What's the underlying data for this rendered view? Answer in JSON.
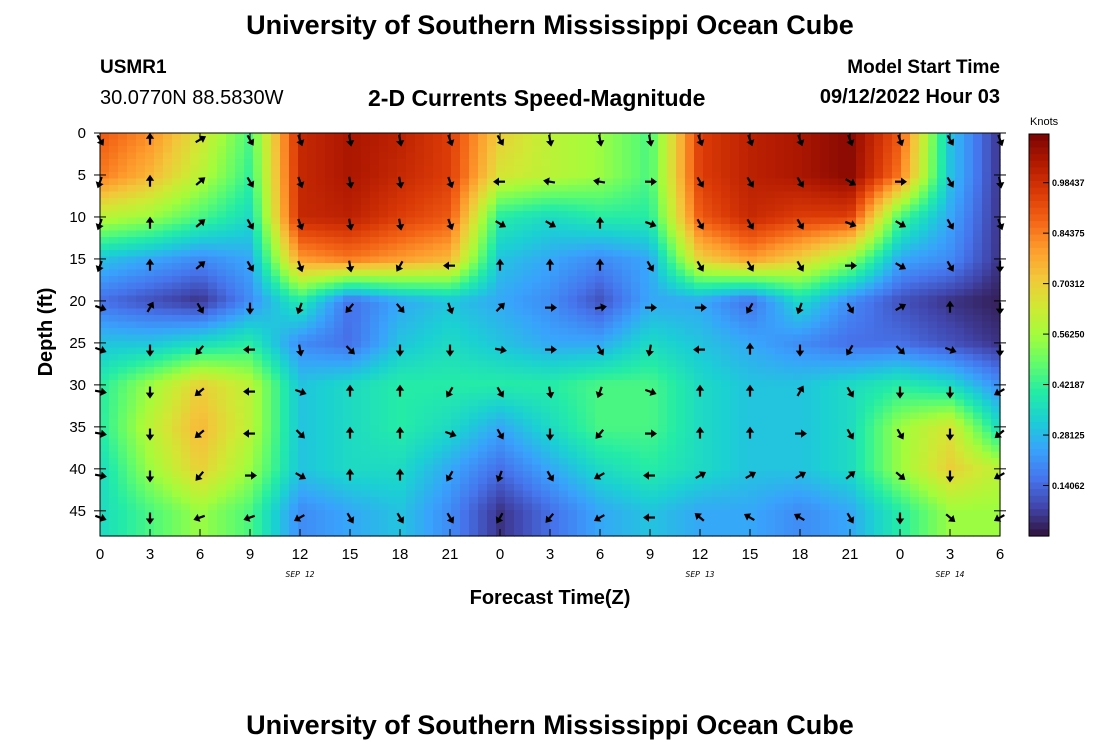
{
  "header": {
    "title": "University of Southern Mississippi Ocean Cube",
    "station": "USMR1",
    "coords": "30.0770N  88.5830W",
    "subtitle": "2-D Currents Speed-Magnitude",
    "model_start_label": "Model Start Time",
    "model_start_value": "09/12/2022 Hour 03"
  },
  "footer_title": "University of Southern Mississippi Ocean Cube",
  "chart_data": {
    "type": "heatmap",
    "xlabel": "Forecast Time(Z)",
    "ylabel": "Depth (ft)",
    "x_ticks": [
      "0",
      "3",
      "6",
      "9",
      "12",
      "15",
      "18",
      "21",
      "0",
      "3",
      "6",
      "9",
      "12",
      "15",
      "18",
      "21",
      "0",
      "3",
      "6"
    ],
    "x_range": [
      0,
      54
    ],
    "x_unit": "hours from 09/12 00Z",
    "date_labels": [
      {
        "label": "SEP 12",
        "hour": 12
      },
      {
        "label": "SEP 13",
        "hour": 36
      },
      {
        "label": "SEP 14",
        "hour": 51
      }
    ],
    "y_ticks": [
      0,
      5,
      10,
      15,
      20,
      25,
      30,
      35,
      40,
      45
    ],
    "y_range": [
      0,
      48
    ],
    "y_inverted": true,
    "colorbar": {
      "title": "Knots",
      "ticks": [
        "0.98437",
        "0.84375",
        "0.70312",
        "0.56250",
        "0.42187",
        "0.28125",
        "0.14062"
      ],
      "range": [
        0.0,
        1.12
      ],
      "colormap": [
        "#30123b",
        "#4145ab",
        "#4675ed",
        "#39a2fc",
        "#1bcfd4",
        "#24eca6",
        "#61fc6c",
        "#a4fc3b",
        "#d1e834",
        "#f3c63a",
        "#fe9b2d",
        "#f36315",
        "#d93806",
        "#b11901",
        "#7a0403"
      ]
    },
    "speed_grid": {
      "x": [
        0,
        3,
        6,
        9,
        12,
        15,
        18,
        21,
        24,
        27,
        30,
        33,
        36,
        39,
        42,
        45,
        48,
        51,
        54
      ],
      "depths": [
        0,
        5,
        10,
        15,
        20,
        25,
        30,
        35,
        40,
        45
      ],
      "values": [
        [
          0.9,
          0.82,
          0.65,
          0.45,
          1.0,
          1.05,
          1.02,
          0.95,
          0.7,
          0.6,
          0.55,
          0.45,
          0.95,
          1.02,
          1.05,
          1.1,
          0.9,
          0.3,
          0.05
        ],
        [
          0.85,
          0.75,
          0.6,
          0.42,
          1.0,
          1.05,
          1.0,
          0.95,
          0.65,
          0.6,
          0.55,
          0.45,
          0.95,
          1.02,
          1.05,
          1.1,
          0.85,
          0.3,
          0.05
        ],
        [
          0.6,
          0.55,
          0.45,
          0.35,
          1.0,
          1.02,
          0.95,
          0.9,
          0.4,
          0.35,
          0.4,
          0.4,
          0.9,
          1.0,
          0.95,
          0.95,
          0.45,
          0.25,
          0.05
        ],
        [
          0.3,
          0.25,
          0.2,
          0.25,
          0.8,
          0.85,
          0.8,
          0.75,
          0.3,
          0.25,
          0.2,
          0.25,
          0.7,
          0.8,
          0.7,
          0.55,
          0.25,
          0.2,
          0.05
        ],
        [
          0.15,
          0.1,
          0.05,
          0.2,
          0.4,
          0.15,
          0.25,
          0.3,
          0.25,
          0.2,
          0.1,
          0.25,
          0.25,
          0.15,
          0.35,
          0.2,
          0.1,
          0.05,
          0.02
        ],
        [
          0.3,
          0.3,
          0.35,
          0.4,
          0.2,
          0.15,
          0.3,
          0.35,
          0.3,
          0.25,
          0.25,
          0.35,
          0.3,
          0.25,
          0.2,
          0.15,
          0.15,
          0.1,
          0.05
        ],
        [
          0.4,
          0.55,
          0.7,
          0.6,
          0.3,
          0.35,
          0.4,
          0.4,
          0.4,
          0.4,
          0.45,
          0.45,
          0.35,
          0.3,
          0.3,
          0.35,
          0.4,
          0.35,
          0.2
        ],
        [
          0.4,
          0.6,
          0.75,
          0.6,
          0.3,
          0.35,
          0.4,
          0.35,
          0.25,
          0.35,
          0.45,
          0.45,
          0.35,
          0.3,
          0.3,
          0.35,
          0.55,
          0.65,
          0.35
        ],
        [
          0.35,
          0.55,
          0.7,
          0.55,
          0.3,
          0.35,
          0.35,
          0.25,
          0.15,
          0.25,
          0.35,
          0.4,
          0.35,
          0.3,
          0.3,
          0.35,
          0.55,
          0.7,
          0.6
        ],
        [
          0.35,
          0.45,
          0.55,
          0.45,
          0.2,
          0.25,
          0.3,
          0.2,
          0.05,
          0.15,
          0.25,
          0.3,
          0.25,
          0.25,
          0.2,
          0.25,
          0.4,
          0.55,
          0.55
        ]
      ]
    },
    "direction_grid_deg": {
      "x": [
        0,
        3,
        6,
        9,
        12,
        15,
        18,
        21,
        24,
        27,
        30,
        33,
        36,
        39,
        42,
        45,
        48,
        51,
        54
      ],
      "depths": [
        0,
        5,
        10,
        15,
        20,
        25,
        30,
        35,
        40,
        45
      ],
      "values": [
        [
          150,
          0,
          60,
          150,
          160,
          170,
          170,
          160,
          150,
          170,
          170,
          170,
          160,
          160,
          160,
          160,
          160,
          150,
          160
        ],
        [
          200,
          0,
          50,
          150,
          160,
          170,
          170,
          160,
          270,
          280,
          280,
          90,
          150,
          150,
          150,
          120,
          90,
          150,
          170
        ],
        [
          200,
          0,
          50,
          150,
          160,
          170,
          170,
          160,
          120,
          120,
          0,
          110,
          150,
          150,
          150,
          110,
          120,
          150,
          160
        ],
        [
          200,
          0,
          50,
          150,
          160,
          170,
          210,
          270,
          0,
          0,
          0,
          150,
          150,
          150,
          150,
          90,
          120,
          150,
          180
        ],
        [
          110,
          30,
          150,
          180,
          200,
          220,
          140,
          160,
          45,
          90,
          80,
          90,
          90,
          210,
          200,
          150,
          60,
          0,
          180
        ],
        [
          110,
          180,
          220,
          270,
          170,
          135,
          180,
          180,
          100,
          90,
          150,
          190,
          270,
          0,
          180,
          210,
          135,
          110,
          180
        ],
        [
          100,
          180,
          230,
          270,
          110,
          0,
          0,
          210,
          150,
          170,
          200,
          110,
          0,
          0,
          30,
          150,
          180,
          180,
          240
        ],
        [
          100,
          180,
          230,
          270,
          135,
          0,
          0,
          110,
          150,
          180,
          220,
          90,
          0,
          0,
          90,
          150,
          150,
          180,
          230
        ],
        [
          100,
          180,
          220,
          90,
          120,
          0,
          0,
          210,
          200,
          150,
          240,
          270,
          60,
          60,
          60,
          50,
          130,
          180,
          240
        ],
        [
          110,
          180,
          250,
          250,
          240,
          150,
          150,
          150,
          210,
          220,
          240,
          270,
          310,
          300,
          300,
          150,
          180,
          130,
          240
        ]
      ]
    }
  }
}
